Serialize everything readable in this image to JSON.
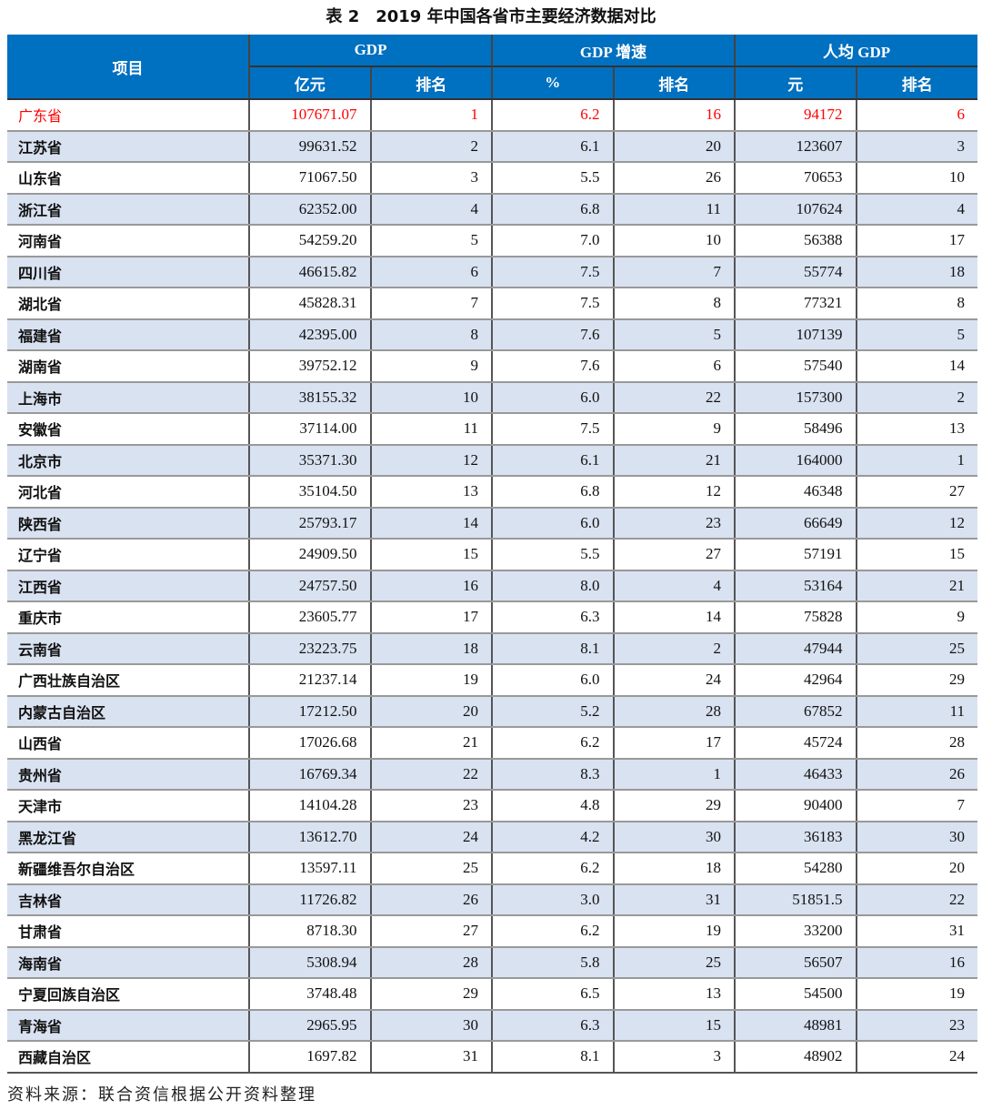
{
  "title": "表 2　2019 年中国各省市主要经济数据对比",
  "colors": {
    "header_bg": "#0070c0",
    "alt_row_bg": "#d9e2f1",
    "highlight_text": "#ff0000"
  },
  "header": {
    "item": "项目",
    "groups": [
      "GDP",
      "GDP 增速",
      "人均 GDP"
    ],
    "sub": [
      "亿元",
      "排名",
      "%",
      "排名",
      "元",
      "排名"
    ]
  },
  "highlight_row": "广东省",
  "rows": [
    [
      "广东省",
      "107671.07",
      "1",
      "6.2",
      "16",
      "94172",
      "6"
    ],
    [
      "江苏省",
      "99631.52",
      "2",
      "6.1",
      "20",
      "123607",
      "3"
    ],
    [
      "山东省",
      "71067.50",
      "3",
      "5.5",
      "26",
      "70653",
      "10"
    ],
    [
      "浙江省",
      "62352.00",
      "4",
      "6.8",
      "11",
      "107624",
      "4"
    ],
    [
      "河南省",
      "54259.20",
      "5",
      "7.0",
      "10",
      "56388",
      "17"
    ],
    [
      "四川省",
      "46615.82",
      "6",
      "7.5",
      "7",
      "55774",
      "18"
    ],
    [
      "湖北省",
      "45828.31",
      "7",
      "7.5",
      "8",
      "77321",
      "8"
    ],
    [
      "福建省",
      "42395.00",
      "8",
      "7.6",
      "5",
      "107139",
      "5"
    ],
    [
      "湖南省",
      "39752.12",
      "9",
      "7.6",
      "6",
      "57540",
      "14"
    ],
    [
      "上海市",
      "38155.32",
      "10",
      "6.0",
      "22",
      "157300",
      "2"
    ],
    [
      "安徽省",
      "37114.00",
      "11",
      "7.5",
      "9",
      "58496",
      "13"
    ],
    [
      "北京市",
      "35371.30",
      "12",
      "6.1",
      "21",
      "164000",
      "1"
    ],
    [
      "河北省",
      "35104.50",
      "13",
      "6.8",
      "12",
      "46348",
      "27"
    ],
    [
      "陕西省",
      "25793.17",
      "14",
      "6.0",
      "23",
      "66649",
      "12"
    ],
    [
      "辽宁省",
      "24909.50",
      "15",
      "5.5",
      "27",
      "57191",
      "15"
    ],
    [
      "江西省",
      "24757.50",
      "16",
      "8.0",
      "4",
      "53164",
      "21"
    ],
    [
      "重庆市",
      "23605.77",
      "17",
      "6.3",
      "14",
      "75828",
      "9"
    ],
    [
      "云南省",
      "23223.75",
      "18",
      "8.1",
      "2",
      "47944",
      "25"
    ],
    [
      "广西壮族自治区",
      "21237.14",
      "19",
      "6.0",
      "24",
      "42964",
      "29"
    ],
    [
      "内蒙古自治区",
      "17212.50",
      "20",
      "5.2",
      "28",
      "67852",
      "11"
    ],
    [
      "山西省",
      "17026.68",
      "21",
      "6.2",
      "17",
      "45724",
      "28"
    ],
    [
      "贵州省",
      "16769.34",
      "22",
      "8.3",
      "1",
      "46433",
      "26"
    ],
    [
      "天津市",
      "14104.28",
      "23",
      "4.8",
      "29",
      "90400",
      "7"
    ],
    [
      "黑龙江省",
      "13612.70",
      "24",
      "4.2",
      "30",
      "36183",
      "30"
    ],
    [
      "新疆维吾尔自治区",
      "13597.11",
      "25",
      "6.2",
      "18",
      "54280",
      "20"
    ],
    [
      "吉林省",
      "11726.82",
      "26",
      "3.0",
      "31",
      "51851.5",
      "22"
    ],
    [
      "甘肃省",
      "8718.30",
      "27",
      "6.2",
      "19",
      "33200",
      "31"
    ],
    [
      "海南省",
      "5308.94",
      "28",
      "5.8",
      "25",
      "56507",
      "16"
    ],
    [
      "宁夏回族自治区",
      "3748.48",
      "29",
      "6.5",
      "13",
      "54500",
      "19"
    ],
    [
      "青海省",
      "2965.95",
      "30",
      "6.3",
      "15",
      "48981",
      "23"
    ],
    [
      "西藏自治区",
      "1697.82",
      "31",
      "8.1",
      "3",
      "48902",
      "24"
    ]
  ],
  "source": "资料来源：联合资信根据公开资料整理"
}
